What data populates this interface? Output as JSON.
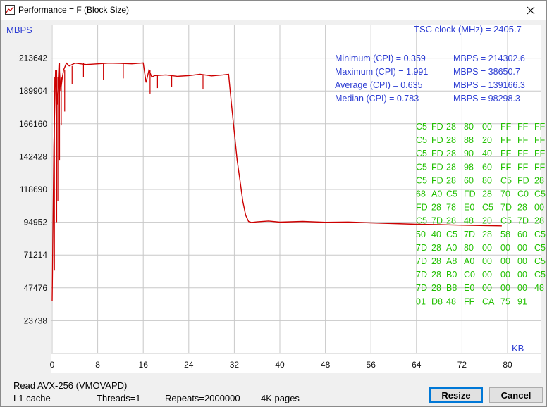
{
  "window": {
    "title": "Performance = F (Block Size)"
  },
  "chart_data": {
    "type": "line",
    "ylabel": "MBPS",
    "xlabel": "KB",
    "xlim": [
      0,
      80
    ],
    "ylim": [
      0,
      237380
    ],
    "x_ticks": [
      "0",
      "8",
      "16",
      "24",
      "32",
      "40",
      "48",
      "56",
      "64",
      "72",
      "80"
    ],
    "y_ticks": [
      "213642",
      "189904",
      "166160",
      "142428",
      "118690",
      "94952",
      "71214",
      "47476",
      "23738"
    ],
    "y_tick_values": [
      213642,
      189904,
      166160,
      142428,
      118690,
      94952,
      71214,
      47476,
      23738
    ],
    "grid": true,
    "series": [
      {
        "color": "#cc0000",
        "x": [
          0,
          0.3,
          0.6,
          0.9,
          1.2,
          1.5,
          1.8,
          2,
          2.5,
          3,
          4,
          6,
          8,
          10,
          12,
          14,
          16,
          16.5,
          17,
          17.5,
          18,
          20,
          22,
          24,
          26,
          28,
          30,
          31,
          31.5,
          32,
          32.5,
          33,
          33.5,
          34,
          34.5,
          35,
          36,
          38,
          40,
          44,
          48,
          52,
          56,
          60,
          64,
          68,
          72,
          76,
          79
        ],
        "values": [
          38000,
          150000,
          205000,
          180000,
          210000,
          190000,
          200000,
          205000,
          210000,
          208000,
          210000,
          209000,
          209500,
          210000,
          209800,
          209500,
          210200,
          196000,
          205000,
          200000,
          201000,
          201500,
          200500,
          201000,
          202000,
          200800,
          201500,
          202000,
          180000,
          160000,
          140000,
          125000,
          110000,
          100000,
          95500,
          94800,
          95200,
          95800,
          95000,
          95500,
          94900,
          95100,
          94500,
          94000,
          93500,
          93200,
          92800,
          92500,
          92300
        ],
        "dips": [
          [
            0.4,
            60000
          ],
          [
            0.8,
            95000
          ],
          [
            1.0,
            110000
          ],
          [
            1.3,
            140000
          ],
          [
            1.6,
            165000
          ],
          [
            2.2,
            175000
          ],
          [
            3.5,
            195000
          ],
          [
            5.5,
            200000
          ],
          [
            9,
            198000
          ],
          [
            12.5,
            199000
          ],
          [
            17.2,
            188000
          ],
          [
            18.5,
            192000
          ],
          [
            21,
            193000
          ],
          [
            26.5,
            191000
          ]
        ]
      }
    ]
  },
  "stats": {
    "tsc_clock": "TSC clock (MHz)  = 2405.7",
    "rows": [
      {
        "label": "Minimum (CPI) = 0.359",
        "value": "MBPS = 214302.6"
      },
      {
        "label": "Maximum (CPI) = 1.991",
        "value": "MBPS = 38650.7"
      },
      {
        "label": "Average (CPI) = 0.635",
        "value": "MBPS = 139166.3"
      },
      {
        "label": "Median (CPI) = 0.783",
        "value": "MBPS = 98298.3"
      }
    ]
  },
  "hex_dump": [
    [
      "C5",
      "FD",
      "28",
      "80",
      "00",
      "FF",
      "FF",
      "FF"
    ],
    [
      "C5",
      "FD",
      "28",
      "88",
      "20",
      "FF",
      "FF",
      "FF"
    ],
    [
      "C5",
      "FD",
      "28",
      "90",
      "40",
      "FF",
      "FF",
      "FF"
    ],
    [
      "C5",
      "FD",
      "28",
      "98",
      "60",
      "FF",
      "FF",
      "FF"
    ],
    [
      "C5",
      "FD",
      "28",
      "60",
      "80",
      "C5",
      "FD",
      "28"
    ],
    [
      "68",
      "A0",
      "C5",
      "FD",
      "28",
      "70",
      "C0",
      "C5"
    ],
    [
      "FD",
      "28",
      "78",
      "E0",
      "C5",
      "7D",
      "28",
      "00"
    ],
    [
      "C5",
      "7D",
      "28",
      "48",
      "20",
      "C5",
      "7D",
      "28"
    ],
    [
      "50",
      "40",
      "C5",
      "7D",
      "28",
      "58",
      "60",
      "C5"
    ],
    [
      "7D",
      "28",
      "A0",
      "80",
      "00",
      "00",
      "00",
      "C5"
    ],
    [
      "7D",
      "28",
      "A8",
      "A0",
      "00",
      "00",
      "00",
      "C5"
    ],
    [
      "7D",
      "28",
      "B0",
      "C0",
      "00",
      "00",
      "00",
      "C5"
    ],
    [
      "7D",
      "28",
      "B8",
      "E0",
      "00",
      "00",
      "00",
      "48"
    ],
    [
      "01",
      "D8",
      "48",
      "FF",
      "CA",
      "75",
      "91",
      ""
    ]
  ],
  "status": {
    "line1": "Read AVX-256 (VMOVAPD)",
    "cache": "L1 cache",
    "threads": "Threads=1",
    "repeats": "Repeats=2000000",
    "pages": "4K pages"
  },
  "buttons": {
    "resize": "Resize",
    "cancel": "Cancel"
  },
  "icons": {
    "app": "chart-app-icon",
    "close": "close-icon"
  }
}
